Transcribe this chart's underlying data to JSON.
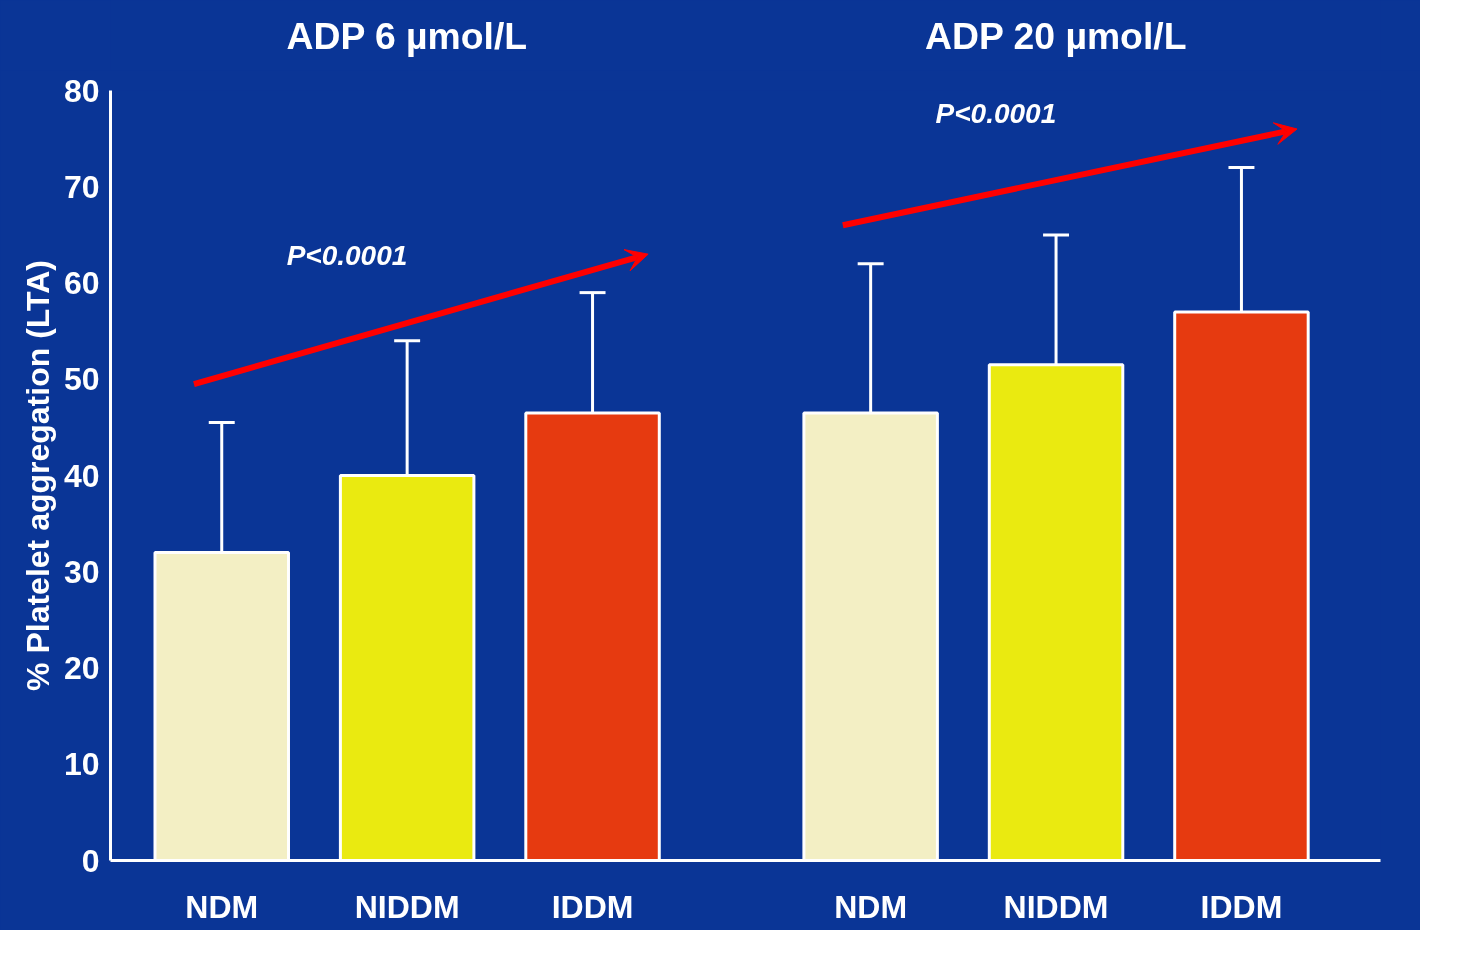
{
  "chart_data": {
    "type": "bar",
    "ylabel": "% Platelet aggregation (LTA)",
    "categories": [
      "NDM",
      "NIDDM",
      "IDDM",
      "NDM",
      "NIDDM",
      "IDDM"
    ],
    "values": [
      32,
      40,
      46.5,
      46.5,
      51.5,
      57
    ],
    "colors": [
      "#f3efc4",
      "#eaea10",
      "#e63a10",
      "#f3efc4",
      "#eaea10",
      "#e63a10"
    ],
    "errors": [
      [
        32,
        45.5
      ],
      [
        40,
        54
      ],
      [
        46.5,
        59
      ],
      [
        46.5,
        62
      ],
      [
        51.5,
        65
      ],
      [
        57,
        72
      ]
    ],
    "annotations": [
      "ADP 6 µmol/L",
      "P<0.0001",
      "ADP 20 µmol/L",
      "P<0.0001"
    ],
    "ylim": [
      0,
      80
    ],
    "yticks": [
      0,
      10,
      20,
      30,
      40,
      50,
      60,
      70,
      80
    ],
    "grid": false
  }
}
